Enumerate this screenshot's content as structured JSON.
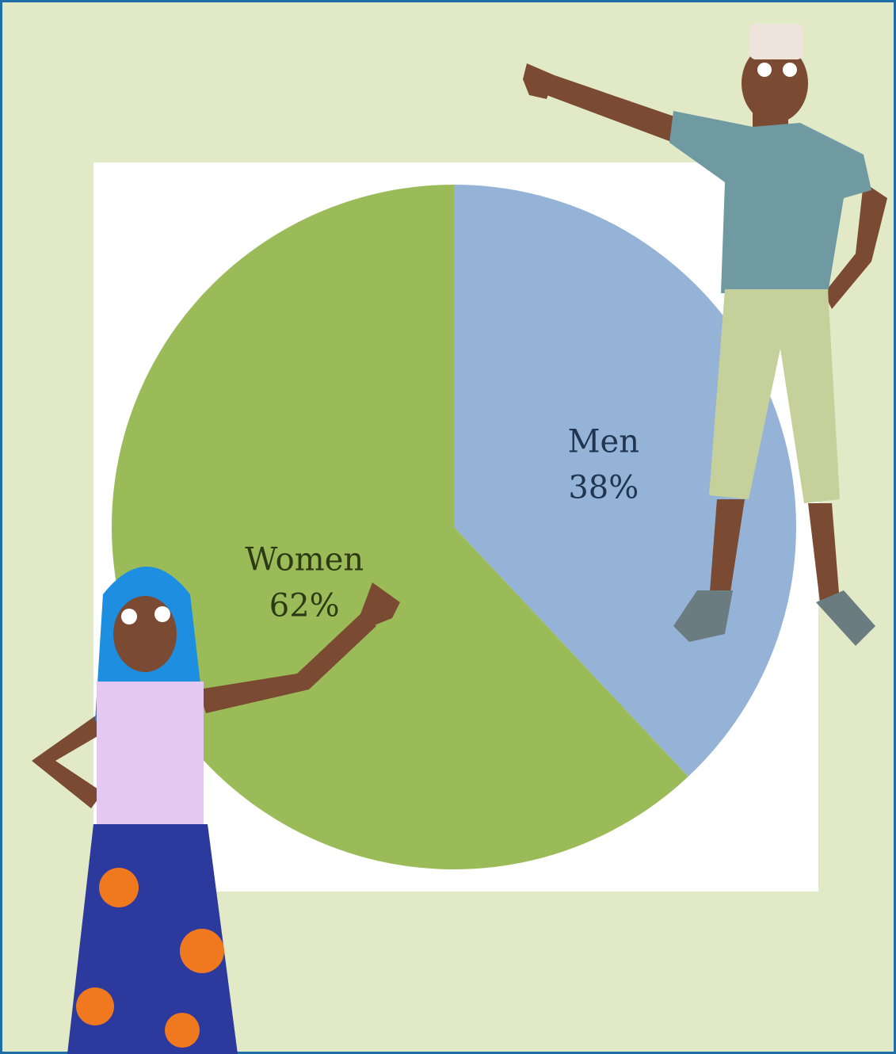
{
  "chart_data": {
    "type": "pie",
    "categories": [
      "Men",
      "Women"
    ],
    "values": [
      38,
      62
    ],
    "value_labels": [
      "38%",
      "62%"
    ],
    "colors": [
      "#95b3d7",
      "#9bbb59"
    ],
    "label_colors": [
      "#1f3550",
      "#2d3a14"
    ]
  }
}
